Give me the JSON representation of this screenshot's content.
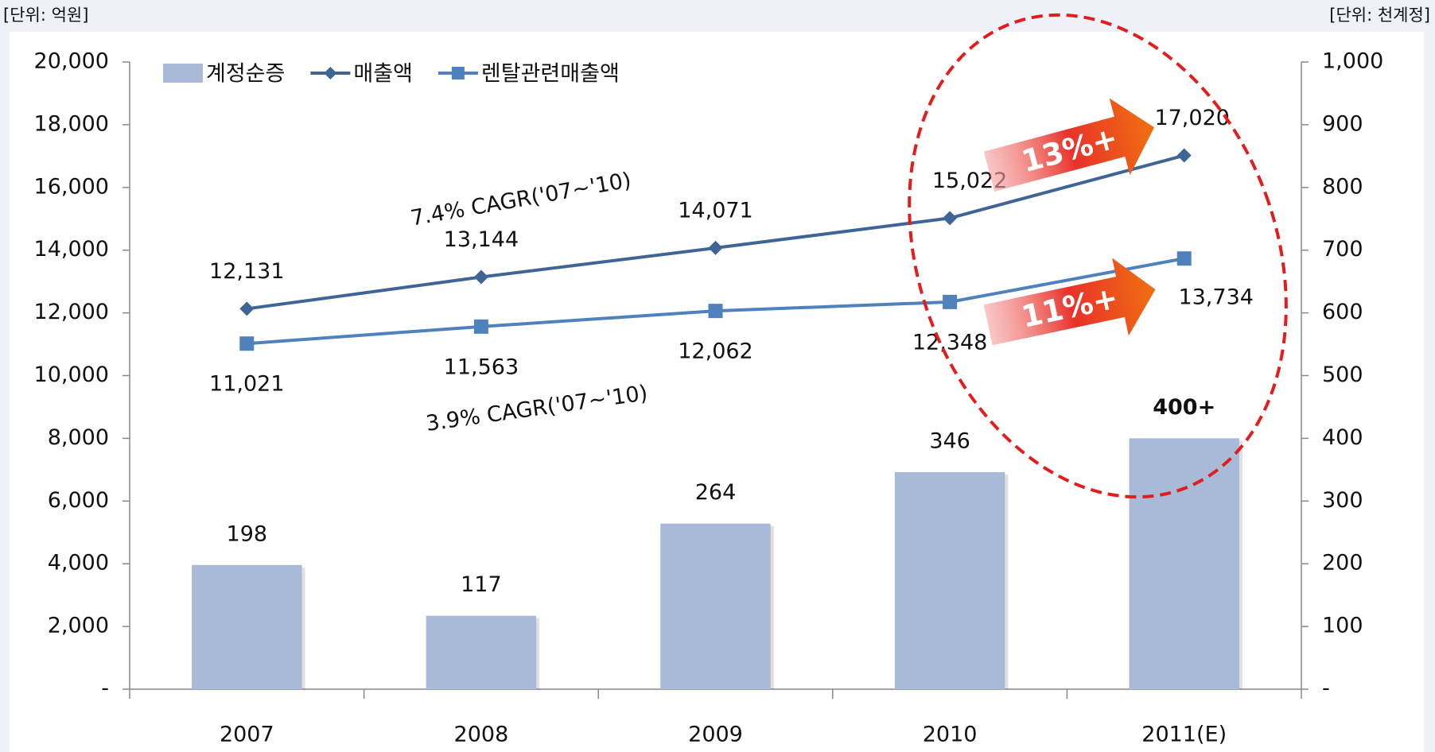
{
  "chart_data": {
    "type": "bar-line",
    "annotations": [
      "[단위: 억원]",
      "[단위: 천계정]",
      "7.4% CAGR('07~'10)",
      "3.9% CAGR('07~'10)",
      "13%+",
      "11%+"
    ],
    "categories": [
      "2007",
      "2008",
      "2009",
      "2010",
      "2011(E)"
    ],
    "series": [
      {
        "name": "계정순증",
        "type": "bar",
        "axis": "y2",
        "color": "#a9b9d8",
        "values": [
          198,
          117,
          264,
          346,
          400
        ],
        "value_labels": [
          "198",
          "117",
          "264",
          "346",
          "400+"
        ]
      },
      {
        "name": "매출액",
        "type": "line",
        "axis": "y",
        "marker": "diamond",
        "color": "#3f6597",
        "values": [
          12131,
          13144,
          14071,
          15022,
          17020
        ],
        "value_labels": [
          "12,131",
          "13,144",
          "14,071",
          "15,022",
          "17,020"
        ]
      },
      {
        "name": "렌탈관련매출액",
        "type": "line",
        "axis": "y",
        "marker": "square",
        "color": "#4f81bd",
        "values": [
          11021,
          11563,
          12062,
          12348,
          13734
        ],
        "value_labels": [
          "11,021",
          "11,563",
          "12,062",
          "12,348",
          "13,734"
        ]
      }
    ],
    "ylim": [
      0,
      20000
    ],
    "yticks": [
      {
        "value": 0,
        "label": "-"
      },
      {
        "value": 2000,
        "label": "2,000"
      },
      {
        "value": 4000,
        "label": "4,000"
      },
      {
        "value": 6000,
        "label": "6,000"
      },
      {
        "value": 8000,
        "label": "8,000"
      },
      {
        "value": 10000,
        "label": "10,000"
      },
      {
        "value": 12000,
        "label": "12,000"
      },
      {
        "value": 14000,
        "label": "14,000"
      },
      {
        "value": 16000,
        "label": "16,000"
      },
      {
        "value": 18000,
        "label": "18,000"
      },
      {
        "value": 20000,
        "label": "20,000"
      }
    ],
    "y2lim": [
      0,
      1000
    ],
    "y2ticks": [
      {
        "value": 0,
        "label": "-"
      },
      100,
      200,
      300,
      400,
      500,
      600,
      700,
      800,
      900,
      {
        "value": 1000,
        "label": "1,000"
      }
    ],
    "grid": false,
    "legend": "top-left"
  }
}
